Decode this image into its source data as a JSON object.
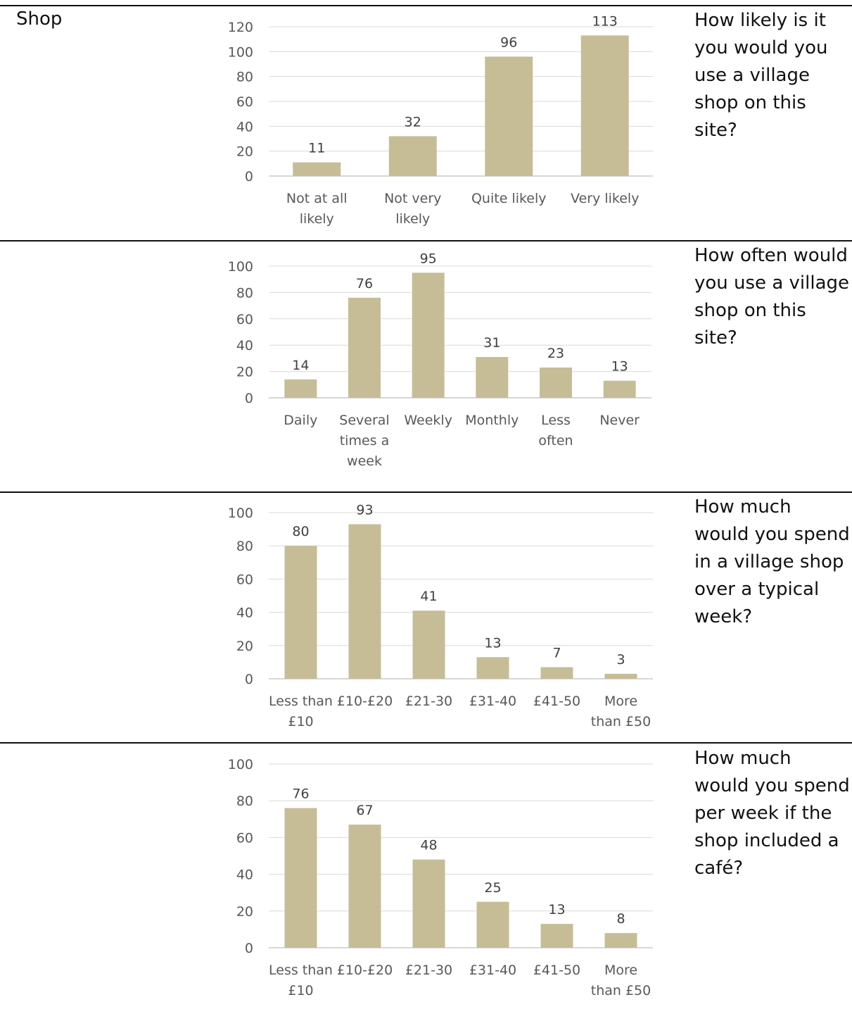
{
  "section": {
    "title": "Shop"
  },
  "colors": {
    "bar": "#c6bd97",
    "grid": "#d9d9d9",
    "text": "#595959"
  },
  "chart_data": [
    {
      "type": "bar",
      "question": "How likely is it you would you use a village shop on this site?",
      "categories": [
        [
          "Not at all",
          "likely"
        ],
        [
          "Not very",
          "likely"
        ],
        [
          "Quite likely"
        ],
        [
          "Very likely"
        ]
      ],
      "values": [
        11,
        32,
        96,
        113
      ],
      "ylim": [
        0,
        120
      ],
      "yticks": [
        0,
        20,
        40,
        60,
        80,
        100,
        120
      ],
      "grid": true
    },
    {
      "type": "bar",
      "question": "How often would you use a village shop on this site?",
      "categories": [
        [
          "Daily"
        ],
        [
          "Several",
          "times a",
          "week"
        ],
        [
          "Weekly"
        ],
        [
          "Monthly"
        ],
        [
          "Less",
          "often"
        ],
        [
          "Never"
        ]
      ],
      "values": [
        14,
        76,
        95,
        31,
        23,
        13
      ],
      "ylim": [
        0,
        100
      ],
      "yticks": [
        0,
        20,
        40,
        60,
        80,
        100
      ],
      "grid": true
    },
    {
      "type": "bar",
      "question": "How much would you spend in a village shop over a typical week?",
      "categories": [
        [
          "Less than",
          "£10"
        ],
        [
          "£10-£20"
        ],
        [
          "£21-30"
        ],
        [
          "£31-40"
        ],
        [
          "£41-50"
        ],
        [
          "More",
          "than £50"
        ]
      ],
      "values": [
        80,
        93,
        41,
        13,
        7,
        3
      ],
      "ylim": [
        0,
        100
      ],
      "yticks": [
        0,
        20,
        40,
        60,
        80,
        100
      ],
      "grid": true
    },
    {
      "type": "bar",
      "question": "How much would you spend per week if the shop included a café?",
      "categories": [
        [
          "Less than",
          "£10"
        ],
        [
          "£10-£20"
        ],
        [
          "£21-30"
        ],
        [
          "£31-40"
        ],
        [
          "£41-50"
        ],
        [
          "More",
          "than £50"
        ]
      ],
      "values": [
        76,
        67,
        48,
        25,
        13,
        8
      ],
      "ylim": [
        0,
        100
      ],
      "yticks": [
        0,
        20,
        40,
        60,
        80,
        100
      ],
      "grid": true
    }
  ]
}
